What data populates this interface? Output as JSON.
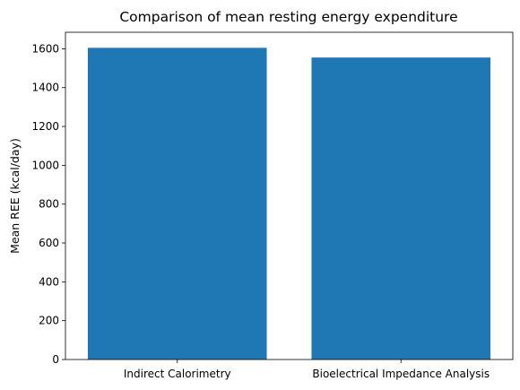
{
  "chart_data": {
    "type": "bar",
    "title": "Comparison of mean resting energy expenditure",
    "xlabel": "",
    "ylabel": "Mean REE (kcal/day)",
    "categories": [
      "Indirect Calorimetry",
      "Bioelectrical Impedance Analysis"
    ],
    "values": [
      1605,
      1555
    ],
    "ylim": [
      0,
      1685
    ],
    "yticks": [
      0,
      200,
      400,
      600,
      800,
      1000,
      1200,
      1400,
      1600
    ],
    "bar_color": "#1f77b4",
    "grid": false,
    "legend": "none"
  }
}
